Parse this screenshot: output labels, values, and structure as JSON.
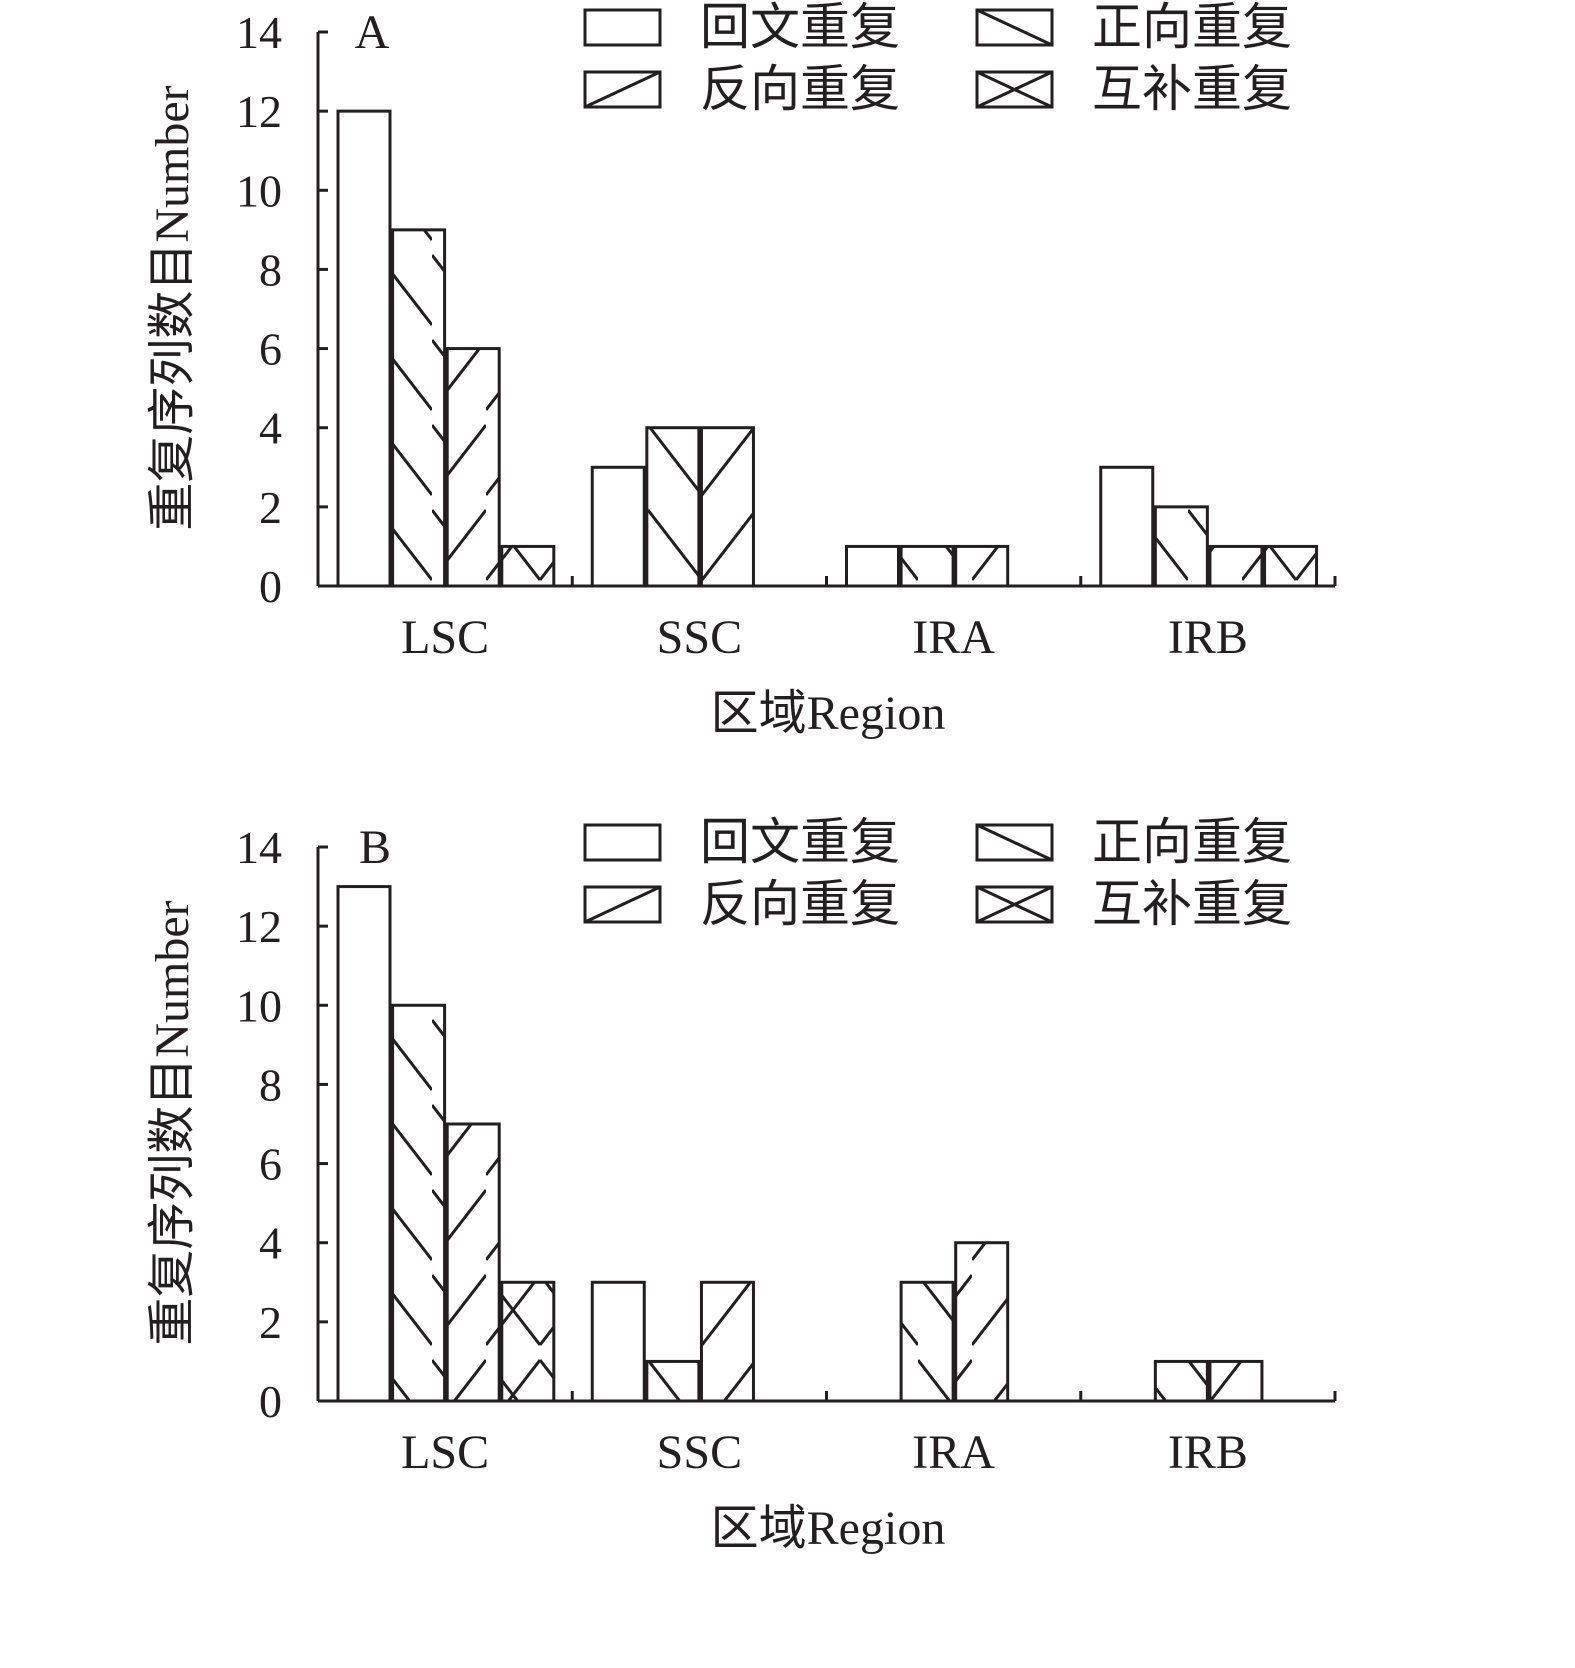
{
  "chart_data": [
    {
      "type": "bar",
      "panel_label": "A",
      "categories": [
        "LSC",
        "SSC",
        "IRA",
        "IRB"
      ],
      "series": [
        {
          "name": "回文重复",
          "pattern": "none",
          "values": [
            12,
            3,
            1,
            3
          ]
        },
        {
          "name": "正向重复",
          "pattern": "backslash",
          "values": [
            9,
            4,
            1,
            2
          ]
        },
        {
          "name": "反向重复",
          "pattern": "slash",
          "values": [
            6,
            4,
            1,
            1
          ]
        },
        {
          "name": "互补重复",
          "pattern": "cross",
          "values": [
            1,
            0,
            0,
            1
          ]
        }
      ],
      "xlabel": "区域Region",
      "ylabel": "重复序列数目Number",
      "ylim": [
        0,
        14
      ],
      "yticks": [
        "0",
        "2",
        "4",
        "6",
        "8",
        "10",
        "12",
        "14"
      ],
      "legend_placement": "top-right",
      "grid": false
    },
    {
      "type": "bar",
      "panel_label": "B",
      "categories": [
        "LSC",
        "SSC",
        "IRA",
        "IRB"
      ],
      "series": [
        {
          "name": "回文重复",
          "pattern": "none",
          "values": [
            13,
            3,
            0,
            0
          ]
        },
        {
          "name": "正向重复",
          "pattern": "backslash",
          "values": [
            10,
            1,
            3,
            1
          ]
        },
        {
          "name": "反向重复",
          "pattern": "slash",
          "values": [
            7,
            3,
            4,
            1
          ]
        },
        {
          "name": "互补重复",
          "pattern": "cross",
          "values": [
            3,
            0,
            0,
            0
          ]
        }
      ],
      "xlabel": "区域Region",
      "ylabel": "重复序列数目Number",
      "ylim": [
        0,
        14
      ],
      "yticks": [
        "0",
        "2",
        "4",
        "6",
        "8",
        "10",
        "12",
        "14"
      ],
      "legend_placement": "top-right",
      "grid": false
    }
  ],
  "colors": {
    "ink": "#231f20",
    "fill": "#ffffff"
  }
}
